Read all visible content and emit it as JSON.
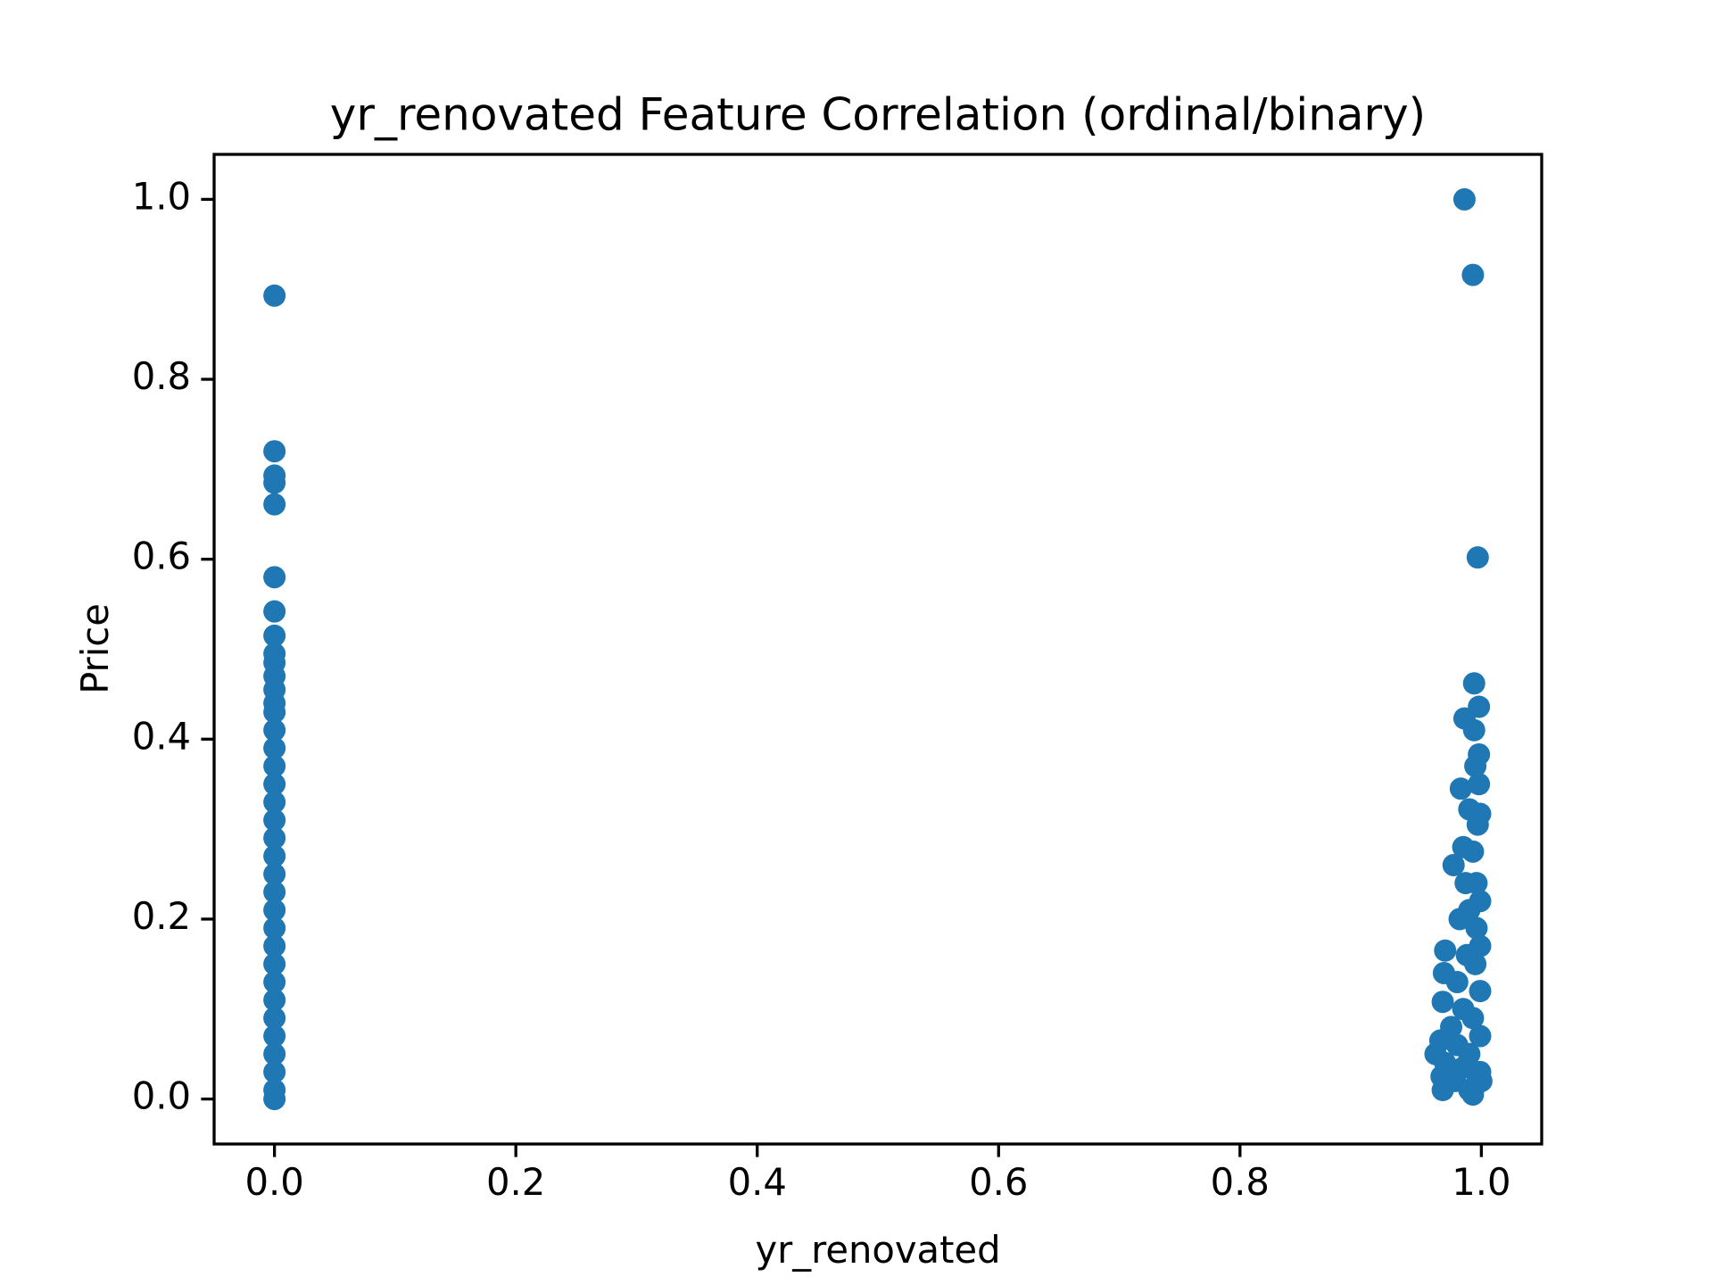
{
  "chart_data": {
    "type": "scatter",
    "title": "yr_renovated Feature Correlation (ordinal/binary)",
    "x_label": "yr_renovated",
    "y_label": "Price",
    "xlim": [
      -0.05,
      1.05
    ],
    "ylim": [
      -0.05,
      1.05
    ],
    "xticks": [
      {
        "value": 0,
        "label": "0.0"
      },
      0.2,
      0.4,
      0.6,
      0.8,
      {
        "value": 1,
        "label": "1.0"
      }
    ],
    "yticks": [
      {
        "value": 0,
        "label": "0.0"
      },
      0.2,
      0.4,
      0.6,
      0.8,
      {
        "value": 1,
        "label": "1.0"
      }
    ],
    "grid": false,
    "series": [
      {
        "color": "#1f77b4",
        "x": [
          0,
          0,
          0,
          0,
          0,
          0,
          0,
          0,
          0,
          0,
          0,
          0,
          0,
          0,
          0,
          0,
          0,
          0,
          0,
          0,
          0,
          0,
          0,
          0,
          0,
          0,
          0,
          0,
          0,
          0,
          0,
          0,
          0,
          0,
          0,
          0,
          0.986,
          0.993,
          0.997,
          0.994,
          0.998,
          0.986,
          0.994,
          0.998,
          0.995,
          0.998,
          0.983,
          0.99,
          0.999,
          0.997,
          0.985,
          0.993,
          0.977,
          0.996,
          0.987,
          0.999,
          0.99,
          0.982,
          0.996,
          0.999,
          0.97,
          0.988,
          0.995,
          0.969,
          0.98,
          0.999,
          0.968,
          0.985,
          0.993,
          0.975,
          0.999,
          0.962,
          0.966,
          0.98,
          0.99,
          0.97,
          0.985,
          0.999,
          0.967,
          0.978,
          0.995,
          0.968,
          0.99,
          0.993,
          1.0
        ],
        "values": [
          0.893,
          0.72,
          0.693,
          0.685,
          0.661,
          0.58,
          0.542,
          0.515,
          0.495,
          0.485,
          0.47,
          0.455,
          0.44,
          0.43,
          0.41,
          0.39,
          0.37,
          0.35,
          0.33,
          0.31,
          0.29,
          0.27,
          0.25,
          0.23,
          0.21,
          0.19,
          0.17,
          0.15,
          0.13,
          0.11,
          0.09,
          0.07,
          0.05,
          0.03,
          0.01,
          0.0,
          1.0,
          0.916,
          0.602,
          0.462,
          0.436,
          0.423,
          0.41,
          0.383,
          0.37,
          0.35,
          0.345,
          0.322,
          0.317,
          0.305,
          0.28,
          0.275,
          0.26,
          0.24,
          0.24,
          0.22,
          0.21,
          0.2,
          0.19,
          0.17,
          0.165,
          0.16,
          0.15,
          0.14,
          0.13,
          0.12,
          0.108,
          0.1,
          0.09,
          0.08,
          0.07,
          0.05,
          0.065,
          0.06,
          0.05,
          0.04,
          0.035,
          0.03,
          0.025,
          0.02,
          0.015,
          0.01,
          0.01,
          0.005,
          0.02
        ]
      }
    ]
  }
}
